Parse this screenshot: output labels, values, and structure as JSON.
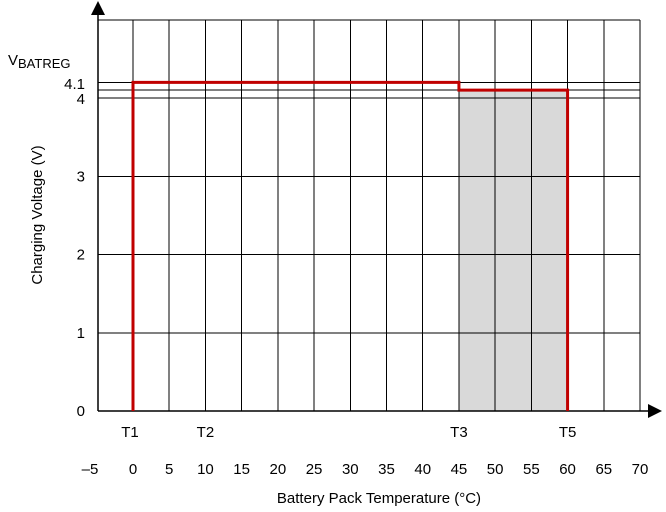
{
  "chart_data": {
    "type": "line",
    "xlabel": "Battery Pack Temperature (°C)",
    "ylabel": "Charging Voltage (V)",
    "xlim": [
      -5,
      70
    ],
    "ylim": [
      0,
      5
    ],
    "x_ticks": [
      {
        "value": -5,
        "label": "–5"
      },
      {
        "value": 0,
        "label": "0"
      },
      {
        "value": 5,
        "label": "5"
      },
      {
        "value": 10,
        "label": "10"
      },
      {
        "value": 15,
        "label": "15"
      },
      {
        "value": 20,
        "label": "20"
      },
      {
        "value": 25,
        "label": "25"
      },
      {
        "value": 30,
        "label": "30"
      },
      {
        "value": 35,
        "label": "35"
      },
      {
        "value": 40,
        "label": "40"
      },
      {
        "value": 45,
        "label": "45"
      },
      {
        "value": 50,
        "label": "50"
      },
      {
        "value": 55,
        "label": "55"
      },
      {
        "value": 60,
        "label": "60"
      },
      {
        "value": 65,
        "label": "65"
      },
      {
        "value": 70,
        "label": "70"
      }
    ],
    "y_ticks": [
      {
        "value": 0,
        "label": "0"
      },
      {
        "value": 1,
        "label": "1"
      },
      {
        "value": 2,
        "label": "2"
      },
      {
        "value": 3,
        "label": "3"
      },
      {
        "value": 4,
        "label": "4"
      },
      {
        "value": 4.1,
        "label": "4.1"
      }
    ],
    "vbatreg": {
      "value": 4.2,
      "label_main": "V",
      "label_sub": "BATREG"
    },
    "threshold_labels": [
      {
        "value": 0,
        "label": "T1"
      },
      {
        "value": 10,
        "label": "T2"
      },
      {
        "value": 45,
        "label": "T3"
      },
      {
        "value": 60,
        "label": "T5"
      }
    ],
    "grid": true,
    "series": [
      {
        "color": "#c00000",
        "points": [
          [
            0,
            0
          ],
          [
            0,
            4.2
          ],
          [
            45,
            4.2
          ],
          [
            45,
            4.1
          ],
          [
            60,
            4.1
          ],
          [
            60,
            0
          ]
        ]
      }
    ],
    "shaded_regions": [
      {
        "x": [
          45,
          60
        ],
        "y": [
          0,
          4.1
        ],
        "color": "#d9d9d9"
      }
    ]
  }
}
